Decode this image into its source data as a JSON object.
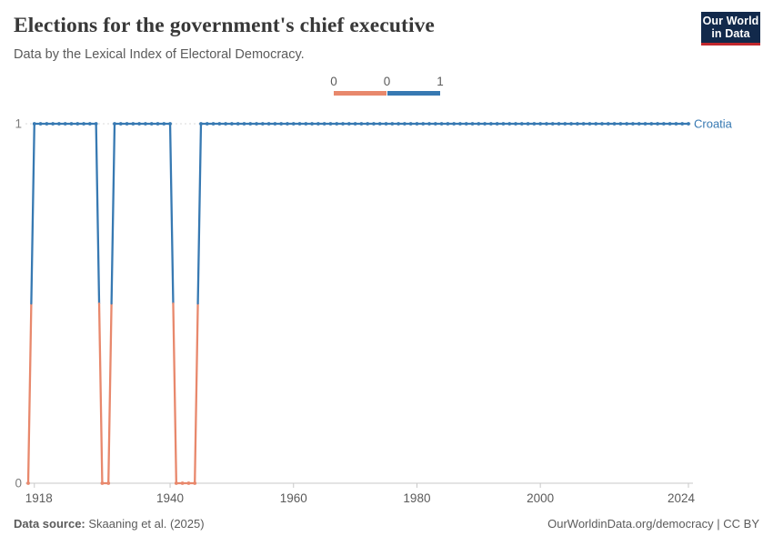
{
  "header": {
    "title": "Elections for the government's chief executive",
    "subtitle": "Data by the Lexical Index of Electoral Democracy."
  },
  "logo": {
    "line1": "Our World",
    "line2": "in Data"
  },
  "colors": {
    "value_0_orange": "#E8886C",
    "value_1_blue": "#3779B2",
    "logo_bg": "#12294B",
    "logo_accent": "#C1272D",
    "axis_line": "#c8c8c8",
    "gridline": "#d9d9d9",
    "tick_label": "#5b5b5b",
    "y_label": "#7c7c7c"
  },
  "legend": {
    "labels": [
      "0",
      "0",
      "1"
    ],
    "bins": [
      {
        "range": [
          0,
          0
        ],
        "color": "#E8886C"
      },
      {
        "range": [
          0,
          1
        ],
        "color": "#3779B2"
      }
    ]
  },
  "chart_data": {
    "type": "line",
    "title": "Elections for the government's chief executive",
    "subtitle": "Data by the Lexical Index of Electoral Democracy.",
    "entity": "Croatia",
    "x_range": [
      1917,
      2024
    ],
    "y_range": [
      0,
      1
    ],
    "x_ticks": [
      1918,
      1940,
      1960,
      1980,
      2000,
      2024
    ],
    "y_ticks": [
      1,
      0
    ],
    "grid": "dashed gridline at y=1 only; solid baseline at y=0",
    "legend_position": "top-center",
    "marker": "circle",
    "value_colors": {
      "0": "#E8886C",
      "1": "#3779B2"
    },
    "series": [
      {
        "name": "Croatia",
        "color_by_value": true,
        "periods": [
          {
            "start": 1917,
            "end": 1917,
            "value": 0
          },
          {
            "start": 1918,
            "end": 1928,
            "value": 1
          },
          {
            "start": 1929,
            "end": 1930,
            "value": 0
          },
          {
            "start": 1931,
            "end": 1940,
            "value": 1
          },
          {
            "start": 1941,
            "end": 1944,
            "value": 0
          },
          {
            "start": 1945,
            "end": 2024,
            "value": 1
          }
        ]
      }
    ]
  },
  "footer": {
    "source_label": "Data source:",
    "source_text": "Skaaning et al. (2025)",
    "credit": "OurWorldinData.org/democracy | CC BY"
  }
}
